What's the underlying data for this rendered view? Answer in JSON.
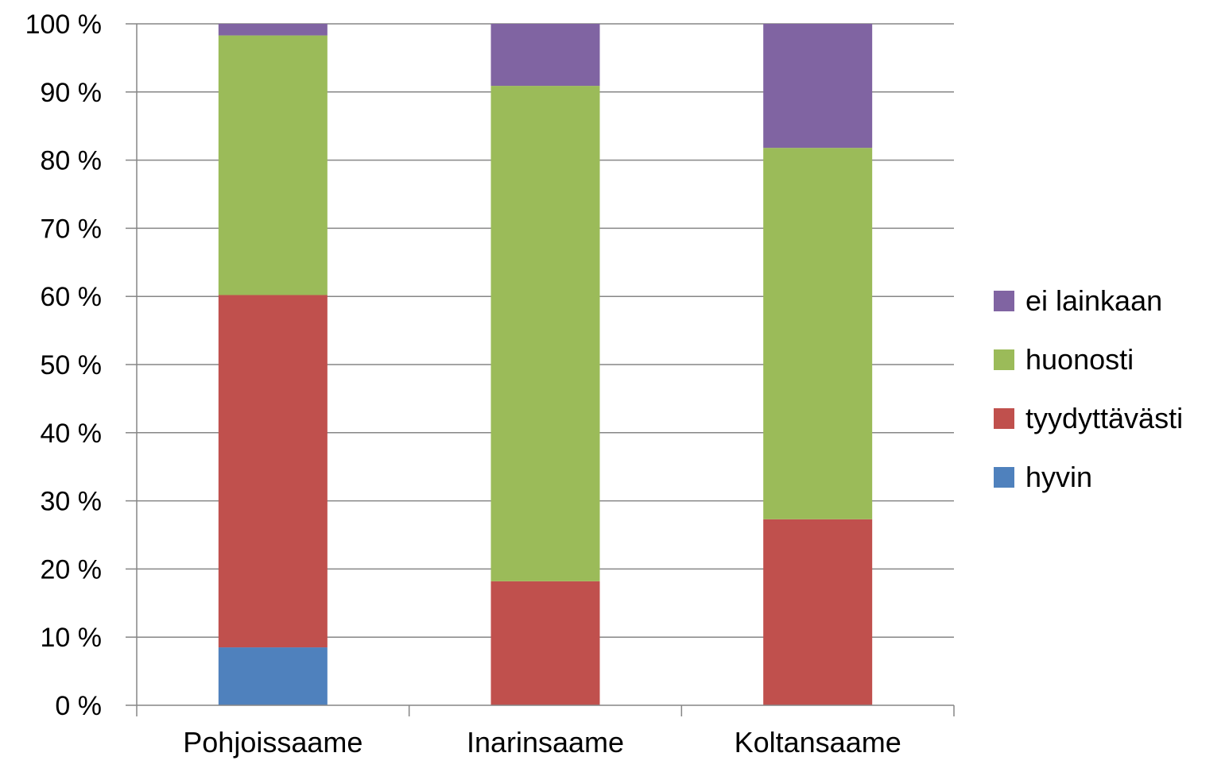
{
  "chart_data": {
    "type": "bar",
    "stacked": true,
    "stacking": "percent",
    "categories": [
      "Pohjoissaame",
      "Inarinsaame",
      "Koltansaame"
    ],
    "series": [
      {
        "name": "hyvin",
        "color": "#4F81BD",
        "values": [
          8.5,
          0,
          0
        ]
      },
      {
        "name": "tyydyttävästi",
        "color": "#C0504D",
        "values": [
          51.7,
          18.2,
          27.3
        ]
      },
      {
        "name": "huonosti",
        "color": "#9BBB59",
        "values": [
          38.1,
          72.7,
          54.5
        ]
      },
      {
        "name": "ei lainkaan",
        "color": "#8064A2",
        "values": [
          1.7,
          9.1,
          18.2
        ]
      }
    ],
    "y_ticks": [
      "0 %",
      "10 %",
      "20 %",
      "30 %",
      "40 %",
      "50 %",
      "60 %",
      "70 %",
      "80 %",
      "90 %",
      "100 %"
    ],
    "ylim": [
      0,
      100
    ],
    "grid": true,
    "legend_position": "right",
    "legend_order": [
      "ei lainkaan",
      "huonosti",
      "tyydyttävästi",
      "hyvin"
    ],
    "title": "",
    "xlabel": "",
    "ylabel": ""
  }
}
